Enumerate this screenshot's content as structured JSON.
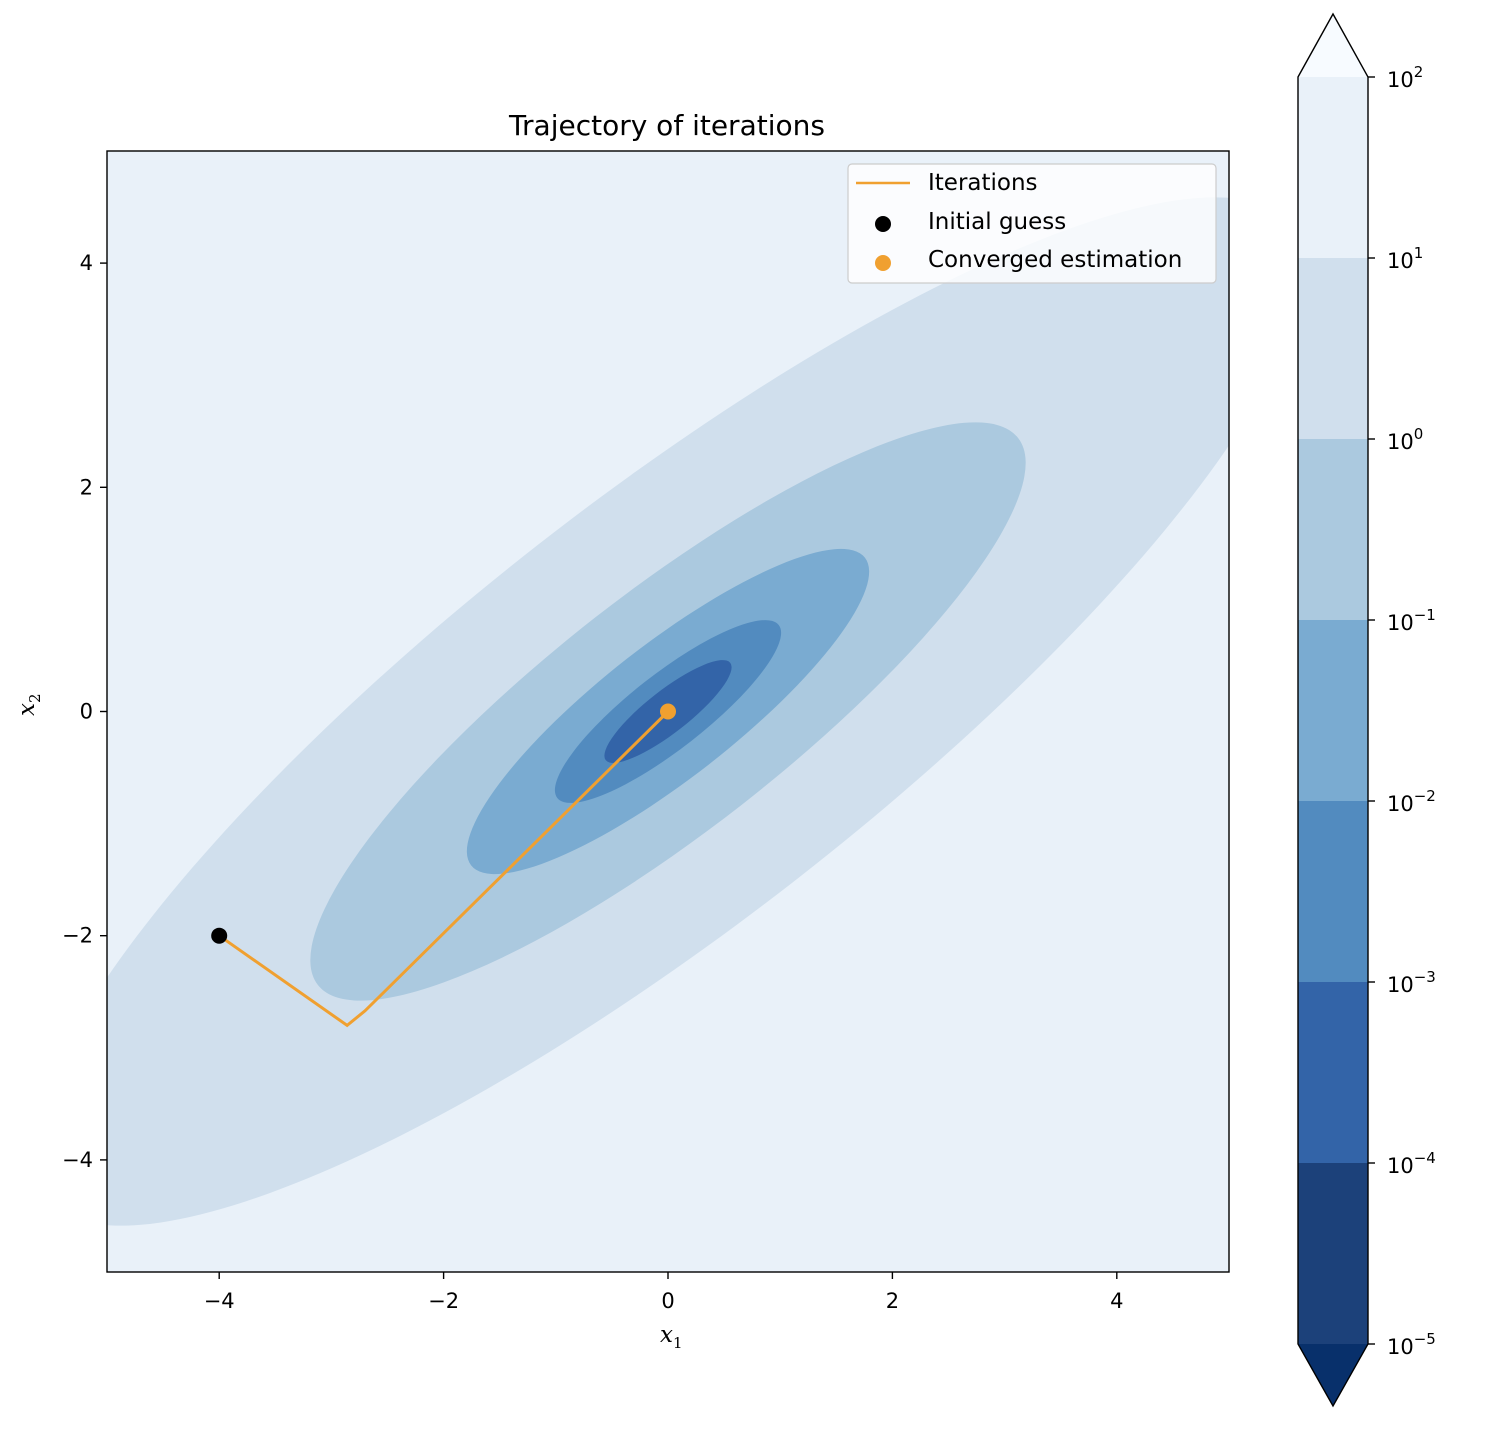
{
  "chart_data": {
    "type": "contour",
    "title": "Trajectory of iterations",
    "xlabel": "x",
    "xlabel_sub": "1",
    "ylabel": "x",
    "ylabel_sub": "2",
    "xlim": [
      -5,
      5
    ],
    "ylim": [
      -5,
      5
    ],
    "xticks": [
      -4,
      -2,
      0,
      2,
      4
    ],
    "yticks": [
      -4,
      -2,
      0,
      2,
      4
    ],
    "xtick_labels": [
      "−4",
      "−2",
      "0",
      "2",
      "4"
    ],
    "ytick_labels": [
      "−4",
      "−2",
      "0",
      "2",
      "4"
    ],
    "grid": false,
    "contour_levels": [
      1e-05,
      0.0001,
      0.001,
      0.01,
      0.1,
      1.0,
      10.0,
      100.0
    ],
    "contour_colors": [
      "#08306b",
      "#1c417a",
      "#3364a8",
      "#528bbf",
      "#7aabd1",
      "#abc9df",
      "#d0dfed",
      "#e9f1f9",
      "#f7fbff"
    ],
    "colorbar": {
      "scale": "log",
      "extend": "both",
      "tick_labels": [
        {
          "base": "10",
          "exp": "2"
        },
        {
          "base": "10",
          "exp": "1"
        },
        {
          "base": "10",
          "exp": "0"
        },
        {
          "base": "10",
          "exp": "−1"
        },
        {
          "base": "10",
          "exp": "−2"
        },
        {
          "base": "10",
          "exp": "−3"
        },
        {
          "base": "10",
          "exp": "−4"
        },
        {
          "base": "10",
          "exp": "−5"
        }
      ]
    },
    "series": [
      {
        "name": "Iterations",
        "type": "line",
        "color": "#f0a030",
        "x": [
          -4.0,
          -2.86,
          -2.7,
          0.0
        ],
        "y": [
          -2.0,
          -2.8,
          -2.67,
          0.0
        ]
      },
      {
        "name": "Initial guess",
        "type": "scatter",
        "color": "#000000",
        "x": [
          -4.0
        ],
        "y": [
          -2.0
        ]
      },
      {
        "name": "Converged estimation",
        "type": "scatter",
        "color": "#f0a030",
        "x": [
          0.0
        ],
        "y": [
          0.0
        ]
      }
    ],
    "legend_position": "upper right"
  }
}
